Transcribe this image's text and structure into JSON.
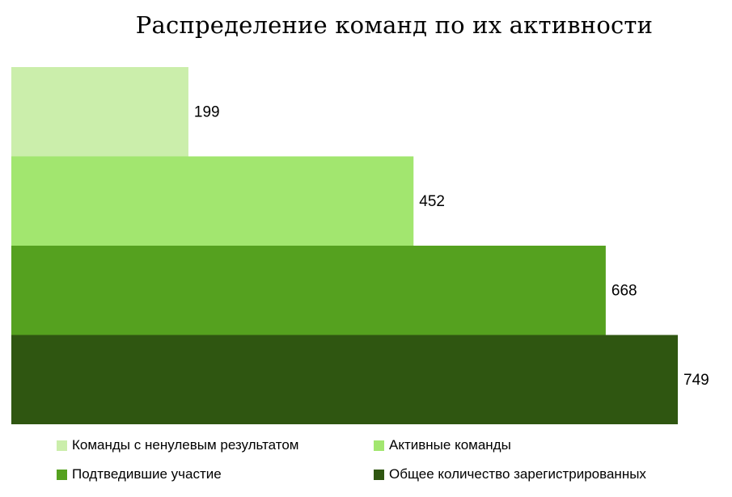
{
  "chart_data": {
    "type": "bar",
    "orientation": "horizontal",
    "title": "Распределение команд по их активности",
    "categories": [
      "Команды с ненулевым результатом",
      "Активные команды",
      "Подтведившие участие",
      "Общее количество зарегистрированных"
    ],
    "values": [
      199,
      452,
      668,
      749
    ],
    "colors": [
      "#cbeeab",
      "#a2e66f",
      "#55a11f",
      "#2f5611"
    ],
    "xlim": [
      0,
      749
    ],
    "grid": false,
    "legend_position": "bottom",
    "data_labels": [
      "199",
      "452",
      "668",
      "749"
    ]
  }
}
